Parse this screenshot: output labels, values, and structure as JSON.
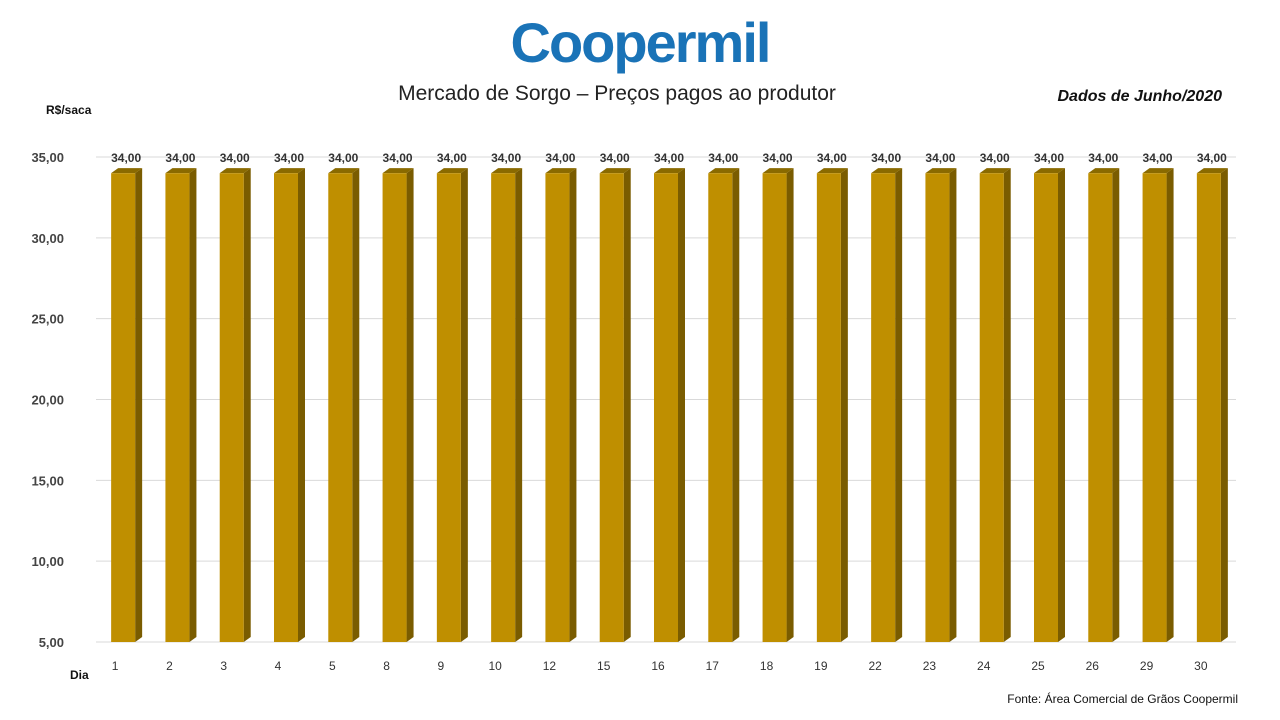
{
  "header": {
    "logo_text": "Coopermil",
    "title": "Mercado de Sorgo – Preços pagos ao produtor",
    "period": "Dados de Junho/2020"
  },
  "footer": {
    "source": "Fonte: Área Comercial de Grãos Coopermil"
  },
  "colors": {
    "logo": "#1a73b7",
    "bar_front": "#bf8f00",
    "bar_side": "#7a5c00",
    "bar_top": "#8a6a00",
    "grid": "#d9d9d9"
  },
  "chart_data": {
    "type": "bar",
    "xlabel": "Dia",
    "ylabel": "R$/saca",
    "ylim": [
      5,
      35
    ],
    "yticks": [
      "5,00",
      "10,00",
      "15,00",
      "20,00",
      "25,00",
      "30,00",
      "35,00"
    ],
    "grid": true,
    "categories": [
      "1",
      "2",
      "3",
      "4",
      "5",
      "8",
      "9",
      "10",
      "12",
      "15",
      "16",
      "17",
      "18",
      "19",
      "22",
      "23",
      "24",
      "25",
      "26",
      "29",
      "30"
    ],
    "values": [
      34,
      34,
      34,
      34,
      34,
      34,
      34,
      34,
      34,
      34,
      34,
      34,
      34,
      34,
      34,
      34,
      34,
      34,
      34,
      34,
      34
    ],
    "data_labels": [
      "34,00",
      "34,00",
      "34,00",
      "34,00",
      "34,00",
      "34,00",
      "34,00",
      "34,00",
      "34,00",
      "34,00",
      "34,00",
      "34,00",
      "34,00",
      "34,00",
      "34,00",
      "34,00",
      "34,00",
      "34,00",
      "34,00",
      "34,00",
      "34,00"
    ]
  }
}
